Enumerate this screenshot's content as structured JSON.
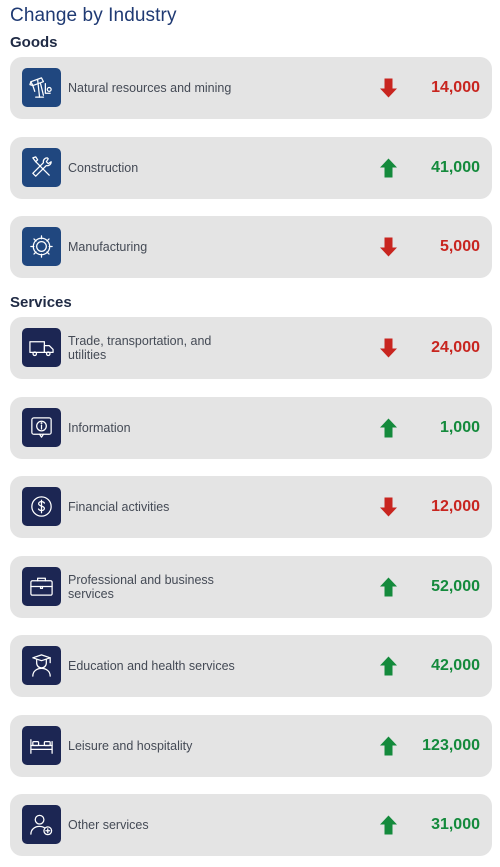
{
  "title": "Change by Industry",
  "colors": {
    "up": "#148a3c",
    "down": "#c8251f",
    "goods_icon_bg": "#20477f",
    "services_icon_bg": "#1c2653",
    "card_bg": "#e4e4e4"
  },
  "sections": [
    {
      "heading": "Goods",
      "items": [
        {
          "label": "Natural resources and mining",
          "value": "14,000",
          "direction": "down",
          "icon": "oil-pump-icon"
        },
        {
          "label": "Construction",
          "value": "41,000",
          "direction": "up",
          "icon": "tools-icon"
        },
        {
          "label": "Manufacturing",
          "value": "5,000",
          "direction": "down",
          "icon": "gear-icon"
        }
      ]
    },
    {
      "heading": "Services",
      "items": [
        {
          "label": "Trade, transportation, and utilities",
          "value": "24,000",
          "direction": "down",
          "icon": "truck-icon"
        },
        {
          "label": "Information",
          "value": "1,000",
          "direction": "up",
          "icon": "info-icon"
        },
        {
          "label": "Financial activities",
          "value": "12,000",
          "direction": "down",
          "icon": "dollar-icon"
        },
        {
          "label": "Professional and business services",
          "value": "52,000",
          "direction": "up",
          "icon": "briefcase-icon"
        },
        {
          "label": "Education and health services",
          "value": "42,000",
          "direction": "up",
          "icon": "graduate-icon"
        },
        {
          "label": "Leisure and hospitality",
          "value": "123,000",
          "direction": "up",
          "icon": "bed-icon"
        },
        {
          "label": "Other services",
          "value": "31,000",
          "direction": "up",
          "icon": "person-plus-icon"
        }
      ]
    }
  ],
  "chart_data": {
    "type": "table",
    "title": "Change by Industry",
    "categories": [
      "Natural resources and mining",
      "Construction",
      "Manufacturing",
      "Trade, transportation, and utilities",
      "Information",
      "Financial activities",
      "Professional and business services",
      "Education and health services",
      "Leisure and hospitality",
      "Other services"
    ],
    "groups": [
      "Goods",
      "Goods",
      "Goods",
      "Services",
      "Services",
      "Services",
      "Services",
      "Services",
      "Services",
      "Services"
    ],
    "values": [
      -14000,
      41000,
      -5000,
      -24000,
      1000,
      -12000,
      52000,
      42000,
      123000,
      31000
    ]
  }
}
